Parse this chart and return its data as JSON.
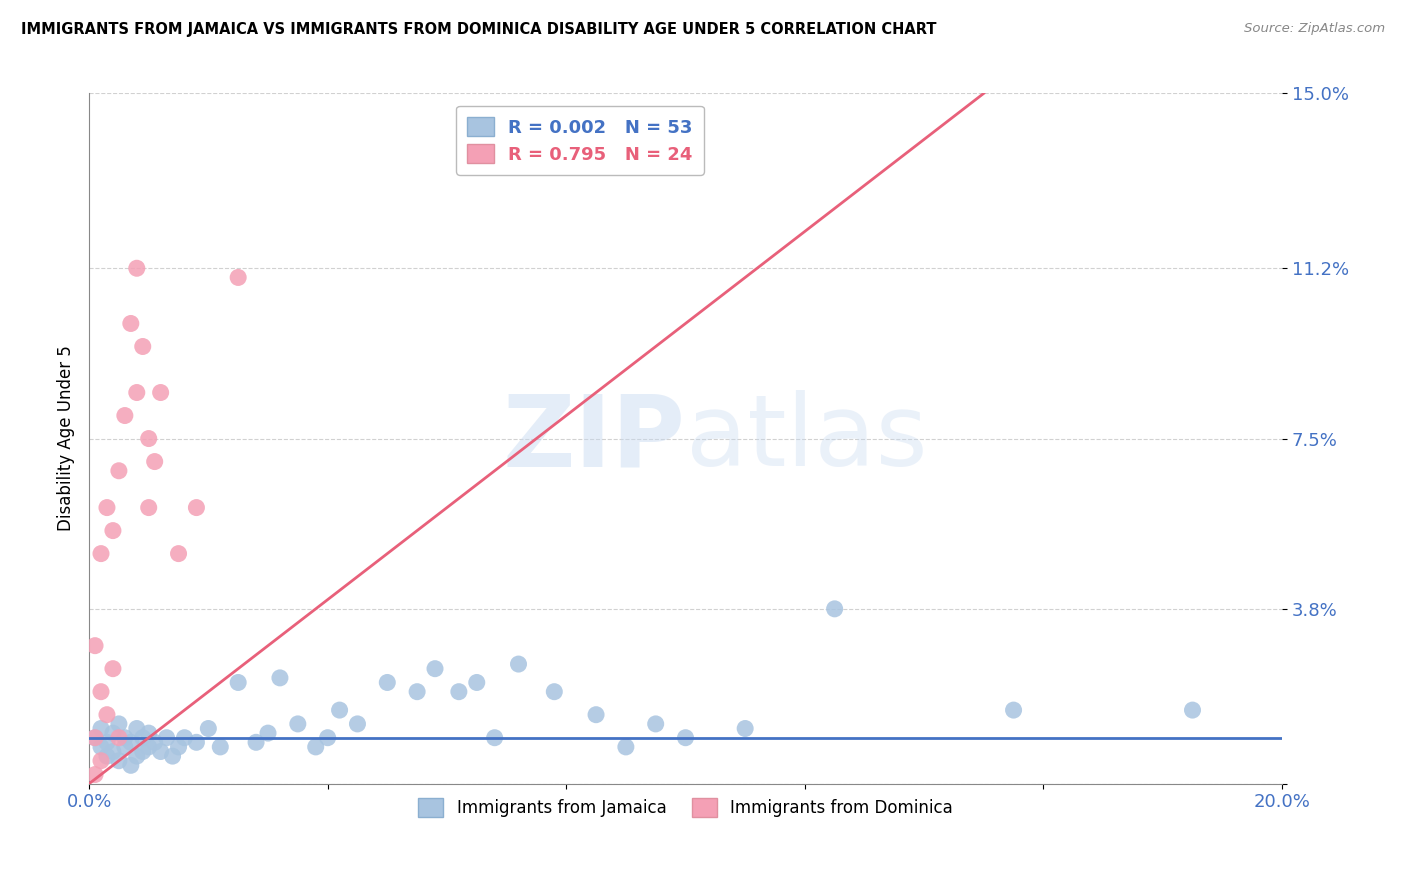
{
  "title": "IMMIGRANTS FROM JAMAICA VS IMMIGRANTS FROM DOMINICA DISABILITY AGE UNDER 5 CORRELATION CHART",
  "source": "Source: ZipAtlas.com",
  "ylabel": "Disability Age Under 5",
  "xlim": [
    0.0,
    0.2
  ],
  "ylim": [
    0.0,
    0.15
  ],
  "xticks": [
    0.0,
    0.04,
    0.08,
    0.12,
    0.16,
    0.2
  ],
  "xticklabels": [
    "0.0%",
    "",
    "",
    "",
    "",
    "20.0%"
  ],
  "yticks": [
    0.0,
    0.038,
    0.075,
    0.112,
    0.15
  ],
  "yticklabels": [
    "",
    "3.8%",
    "7.5%",
    "11.2%",
    "15.0%"
  ],
  "jamaica_color": "#a8c4e0",
  "dominica_color": "#f4a0b5",
  "jamaica_line_color": "#4472c4",
  "dominica_line_color": "#e8607a",
  "jamaica_R": 0.002,
  "jamaica_N": 53,
  "dominica_R": 0.795,
  "dominica_N": 24,
  "watermark_zip": "ZIP",
  "watermark_atlas": "atlas",
  "background_color": "#ffffff",
  "grid_color": "#cccccc",
  "tick_color": "#4472c4",
  "jamaica_scatter_x": [
    0.001,
    0.002,
    0.002,
    0.003,
    0.003,
    0.004,
    0.004,
    0.005,
    0.005,
    0.006,
    0.006,
    0.007,
    0.007,
    0.008,
    0.008,
    0.009,
    0.009,
    0.01,
    0.01,
    0.011,
    0.012,
    0.013,
    0.014,
    0.015,
    0.016,
    0.018,
    0.02,
    0.022,
    0.025,
    0.028,
    0.03,
    0.032,
    0.035,
    0.038,
    0.04,
    0.042,
    0.045,
    0.05,
    0.055,
    0.058,
    0.062,
    0.065,
    0.068,
    0.072,
    0.078,
    0.085,
    0.09,
    0.095,
    0.1,
    0.11,
    0.125,
    0.155,
    0.185
  ],
  "jamaica_scatter_y": [
    0.01,
    0.008,
    0.012,
    0.006,
    0.009,
    0.007,
    0.011,
    0.005,
    0.013,
    0.008,
    0.01,
    0.004,
    0.009,
    0.006,
    0.012,
    0.007,
    0.01,
    0.008,
    0.011,
    0.009,
    0.007,
    0.01,
    0.006,
    0.008,
    0.01,
    0.009,
    0.012,
    0.008,
    0.022,
    0.009,
    0.011,
    0.023,
    0.013,
    0.008,
    0.01,
    0.016,
    0.013,
    0.022,
    0.02,
    0.025,
    0.02,
    0.022,
    0.01,
    0.026,
    0.02,
    0.015,
    0.008,
    0.013,
    0.01,
    0.012,
    0.038,
    0.016,
    0.016
  ],
  "dominica_scatter_x": [
    0.001,
    0.001,
    0.001,
    0.002,
    0.002,
    0.002,
    0.003,
    0.003,
    0.004,
    0.004,
    0.005,
    0.005,
    0.006,
    0.007,
    0.008,
    0.008,
    0.009,
    0.01,
    0.01,
    0.011,
    0.012,
    0.015,
    0.018,
    0.025
  ],
  "dominica_scatter_y": [
    0.002,
    0.01,
    0.03,
    0.005,
    0.02,
    0.05,
    0.015,
    0.06,
    0.025,
    0.055,
    0.01,
    0.068,
    0.08,
    0.1,
    0.085,
    0.112,
    0.095,
    0.075,
    0.06,
    0.07,
    0.085,
    0.05,
    0.06,
    0.11
  ],
  "dominica_line_x0": 0.0,
  "dominica_line_y0": 0.0,
  "dominica_line_x1": 0.15,
  "dominica_line_y1": 0.15,
  "jamaica_line_y": 0.01
}
